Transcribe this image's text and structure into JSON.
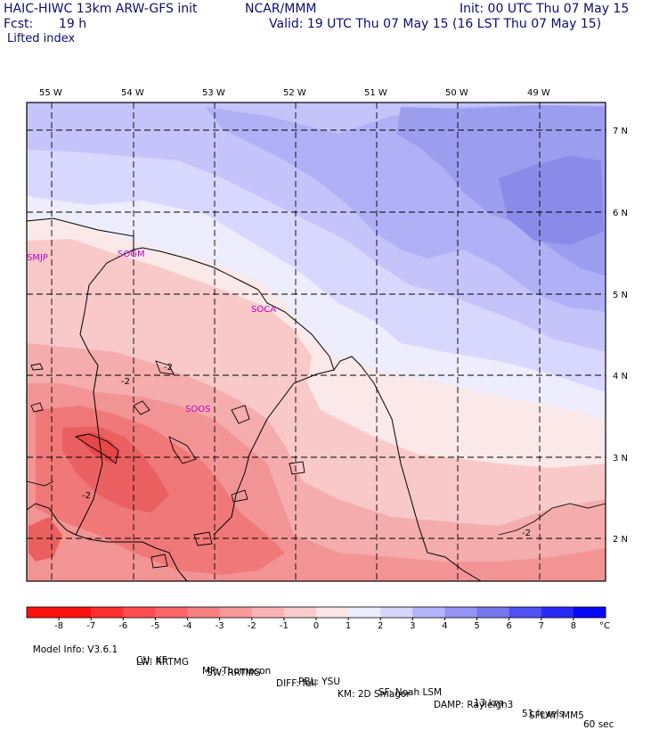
{
  "header": {
    "model": "HAIC-HIWC 13km ARW-GFS init",
    "center": "NCAR/MMM",
    "init": "Init: 00 UTC Thu 07 May 15",
    "fcst_label": "Fcst:",
    "fcst_value": "19 h",
    "valid": "Valid: 19 UTC Thu 07 May 15 (16 LST Thu 07 May 15)",
    "field": "Lifted index"
  },
  "map": {
    "lon_labels": [
      "55 W",
      "54 W",
      "53 W",
      "52 W",
      "51 W",
      "50 W",
      "49 W"
    ],
    "lat_labels": [
      "7 N",
      "6 N",
      "5 N",
      "4 N",
      "3 N",
      "2 N"
    ],
    "stations": [
      "SMJP",
      "SOGM",
      "SOCA",
      "SOOS"
    ],
    "contour_labels": [
      "-2",
      "-2",
      "-2",
      "-2"
    ]
  },
  "colorbar": {
    "labels": [
      "-8",
      "-7",
      "-6",
      "-5",
      "-4",
      "-3",
      "-2",
      "-1",
      "0",
      "1",
      "2",
      "3",
      "4",
      "5",
      "6",
      "7",
      "8"
    ],
    "unit": "°C",
    "colors": [
      "#ff1010",
      "#ff3030",
      "#ff4c4c",
      "#ff6666",
      "#f88080",
      "#f89a9a",
      "#f8b4b4",
      "#facccc",
      "#fde6e6",
      "#ececff",
      "#d6d6ff",
      "#b4b4fc",
      "#9494f4",
      "#7676f0",
      "#5050f4",
      "#2a2af8",
      "#0808f8"
    ]
  },
  "model_info": {
    "line1": [
      "Model Info: V3.6.1",
      "CU: KF",
      "MP: Thompson",
      "PBL: YSU",
      "SF: Noah LSM",
      "13 km",
      "51 levels",
      "60 sec"
    ],
    "line2": [
      "LW: RRTMG",
      "SW: RRTMG",
      "DIFF: full",
      "KM: 2D Smagor",
      "DAMP: Rayleigh3",
      "SFLAY: MM5"
    ]
  }
}
